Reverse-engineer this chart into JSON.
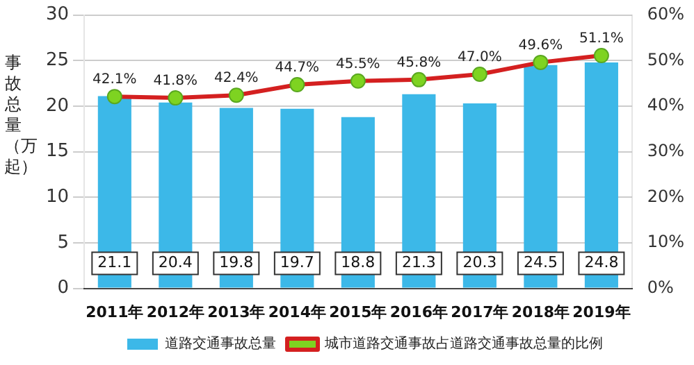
{
  "chart_data": {
    "type": "bar",
    "ylabel": "事故总量（万起）",
    "categories": [
      "2011年",
      "2012年",
      "2013年",
      "2014年",
      "2015年",
      "2016年",
      "2017年",
      "2018年",
      "2019年"
    ],
    "series": [
      {
        "name": "道路交通事故总量",
        "color": "#3cb8e8",
        "values": [
          21.1,
          20.4,
          19.8,
          19.7,
          18.8,
          21.3,
          20.3,
          24.5,
          24.8
        ]
      },
      {
        "name": "城市道路交通事故占道路交通事故总量的比例",
        "type": "line",
        "axis": "y2",
        "color": "#d42020",
        "values": [
          42.1,
          41.8,
          42.4,
          44.7,
          45.5,
          45.8,
          47.0,
          49.6,
          51.1
        ],
        "value_labels": [
          "42.1%",
          "41.8%",
          "42.4%",
          "44.7%",
          "45.5%",
          "45.8%",
          "47.0%",
          "49.6%",
          "51.1%"
        ]
      }
    ],
    "data_labels": true,
    "marker": "circle",
    "grid": "y",
    "legend": "bottom",
    "ylim": [
      0,
      30
    ],
    "yticks": [
      0,
      5,
      10,
      15,
      20,
      25,
      30
    ],
    "y2lim": [
      0,
      60
    ],
    "y2ticks": [
      {
        "value": 0,
        "label": "0%"
      },
      {
        "value": 10,
        "label": "10%"
      },
      {
        "value": 20,
        "label": "20%"
      },
      {
        "value": 30,
        "label": "30%"
      },
      {
        "value": 40,
        "label": "40%"
      },
      {
        "value": 50,
        "label": "50%"
      },
      {
        "value": 60,
        "label": "60%"
      }
    ]
  }
}
